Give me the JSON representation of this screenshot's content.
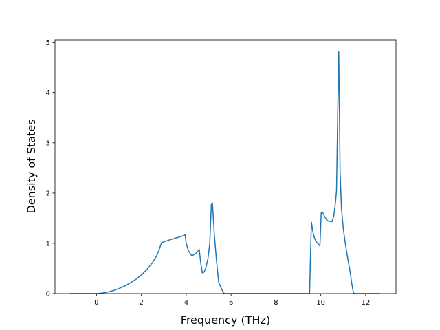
{
  "chart_data": {
    "type": "line",
    "xlabel": "Frequency (THz)",
    "ylabel": "Density of States",
    "xlim": [
      -1.85,
      13.35
    ],
    "ylim": [
      0,
      5.05
    ],
    "xticks": [
      0,
      2,
      4,
      6,
      8,
      10,
      12
    ],
    "yticks": [
      0,
      1,
      2,
      3,
      4,
      5
    ],
    "grid": false,
    "series": [
      {
        "color": "#1f77b4",
        "x": [
          -1.18,
          0.0,
          0.25,
          0.5,
          0.75,
          1.0,
          1.25,
          1.5,
          1.75,
          2.0,
          2.25,
          2.5,
          2.6,
          2.7,
          2.8,
          2.85,
          2.9,
          2.95,
          3.2,
          3.5,
          3.8,
          3.95,
          4.0,
          4.1,
          4.25,
          4.4,
          4.5,
          4.58,
          4.65,
          4.72,
          4.8,
          4.88,
          4.97,
          5.05,
          5.12,
          5.17,
          5.25,
          5.35,
          5.45,
          5.55,
          5.62,
          5.7,
          9.5,
          9.53,
          9.58,
          9.65,
          9.72,
          9.8,
          9.9,
          9.96,
          10.02,
          10.08,
          10.15,
          10.25,
          10.35,
          10.5,
          10.58,
          10.65,
          10.7,
          10.75,
          10.8,
          10.82,
          10.86,
          10.92,
          11.0,
          11.1,
          11.2,
          11.3,
          11.38,
          11.45,
          11.5,
          11.52,
          11.6,
          12.65
        ],
        "y": [
          0.0,
          0.0,
          0.01,
          0.03,
          0.06,
          0.1,
          0.15,
          0.21,
          0.28,
          0.37,
          0.48,
          0.62,
          0.69,
          0.77,
          0.88,
          0.95,
          1.01,
          1.02,
          1.06,
          1.1,
          1.14,
          1.17,
          1.0,
          0.85,
          0.75,
          0.79,
          0.83,
          0.88,
          0.6,
          0.41,
          0.43,
          0.52,
          0.7,
          1.0,
          1.77,
          1.8,
          1.2,
          0.65,
          0.22,
          0.12,
          0.05,
          0.0,
          0.0,
          0.6,
          1.42,
          1.22,
          1.1,
          1.03,
          0.98,
          0.95,
          1.62,
          1.62,
          1.55,
          1.47,
          1.44,
          1.43,
          1.55,
          1.8,
          2.05,
          3.5,
          4.82,
          4.0,
          2.4,
          1.7,
          1.3,
          0.97,
          0.7,
          0.45,
          0.2,
          0.02,
          0.0,
          0.0,
          0.0,
          0.0
        ]
      }
    ]
  }
}
